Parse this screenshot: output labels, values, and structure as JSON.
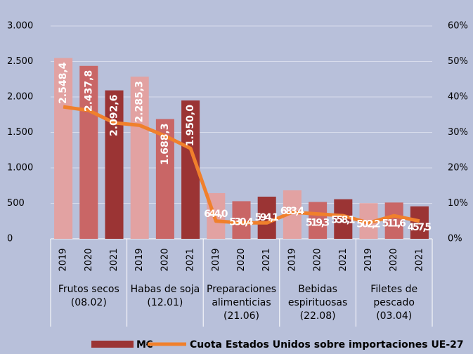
{
  "chart_data": {
    "type": "bar",
    "categories": [
      "2019",
      "2020",
      "2021",
      "2019",
      "2020",
      "2021",
      "2019",
      "2020",
      "2021",
      "2019",
      "2020",
      "2021",
      "2019",
      "2020",
      "2021"
    ],
    "groups": [
      {
        "label": [
          "Frutos secos",
          "(08.02)"
        ]
      },
      {
        "label": [
          "Habas de soja",
          "(12.01)"
        ]
      },
      {
        "label": [
          "Preparaciones",
          "alimenticias",
          "(21.06)"
        ]
      },
      {
        "label": [
          "Bebidas",
          "espirituosas",
          "(22.08)"
        ]
      },
      {
        "label": [
          "Filetes de",
          "pescado",
          "(03.04)"
        ]
      }
    ],
    "series": [
      {
        "name": "M€",
        "color": "#9b3434",
        "colors": [
          "#e2a2a2",
          "#c96666",
          "#9b3434",
          "#e2a2a2",
          "#c96666",
          "#9b3434",
          "#e2a2a2",
          "#c96666",
          "#9b3434",
          "#e2a2a2",
          "#c96666",
          "#9b3434",
          "#e2a2a2",
          "#c96666",
          "#9b3434"
        ],
        "values": [
          2548.4,
          2437.8,
          2092.6,
          2285.3,
          1688.3,
          1950.0,
          644.0,
          530.4,
          594.1,
          683.4,
          519.3,
          558.1,
          502.2,
          511.6,
          457.5
        ],
        "value_labels": [
          "2.548,4",
          "2.437,8",
          "2.092,6",
          "2.285,3",
          "1.688,3",
          "1.950,0",
          "644,0",
          "530,4",
          "594,1",
          "683,4",
          "519,3",
          "558,1",
          "502,2",
          "511,6",
          "457,5"
        ]
      },
      {
        "name": "Cuota Estados Unidos sobre importaciones UE-27",
        "color": "#f0802c",
        "type": "line",
        "axis": "y2",
        "values": [
          37.2,
          36.2,
          32.7,
          32,
          29,
          25.5,
          5,
          4.5,
          4.5,
          7.5,
          7,
          6.5,
          4.5,
          6.5,
          5
        ]
      }
    ],
    "ylim": [
      0,
      3000
    ],
    "yticks": [
      0,
      500,
      {
        "value": 1000,
        "label": "1.000"
      },
      {
        "value": 1500,
        "label": "1.500"
      },
      {
        "value": 2000,
        "label": "2.000"
      },
      {
        "value": 2500,
        "label": "2.500"
      },
      {
        "value": 3000,
        "label": "3.000"
      }
    ],
    "y2lim": [
      0,
      60
    ],
    "y2ticks": [
      {
        "value": 0,
        "label": "0%"
      },
      {
        "value": 10,
        "label": "10%"
      },
      {
        "value": 20,
        "label": "20%"
      },
      {
        "value": 30,
        "label": "30%"
      },
      {
        "value": 40,
        "label": "40%"
      },
      {
        "value": 50,
        "label": "50%"
      },
      {
        "value": 60,
        "label": "60%"
      }
    ],
    "grid": true,
    "legend": "bottom"
  }
}
